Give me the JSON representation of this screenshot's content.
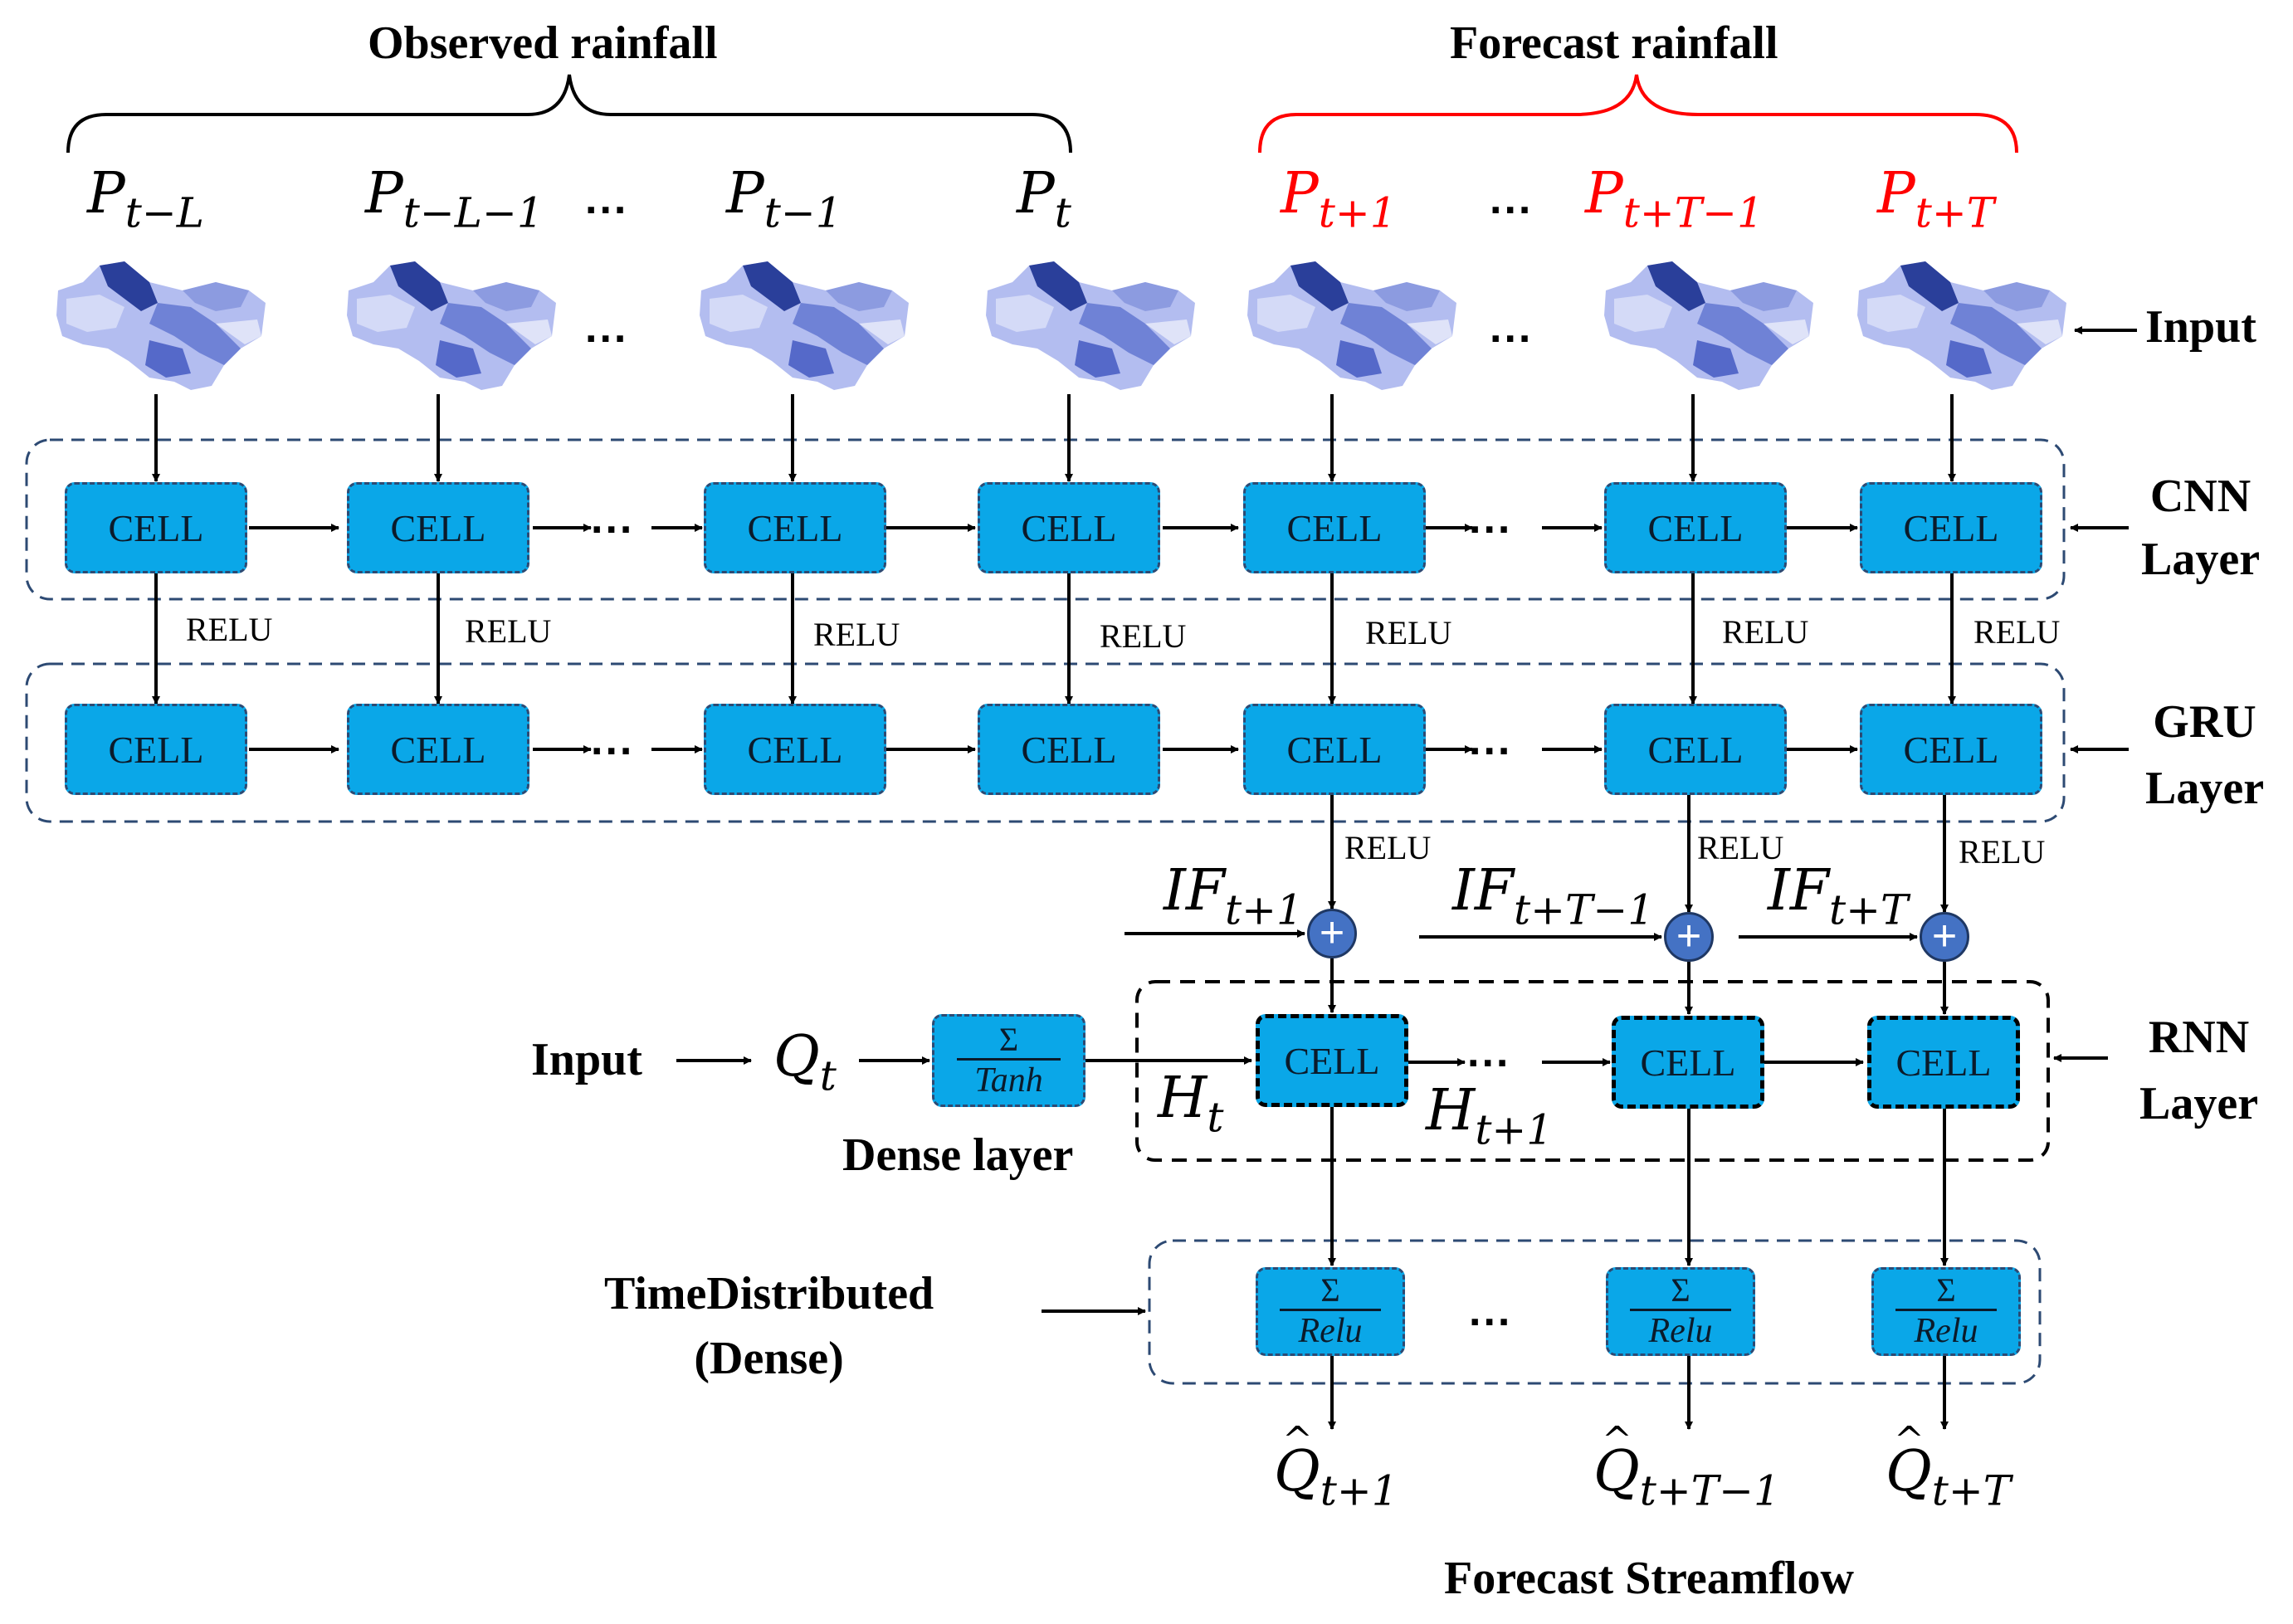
{
  "labels": {
    "observed": "Observed rainfall",
    "forecast": "Forecast rainfall",
    "input": "Input",
    "cnn_layer": [
      "CNN",
      "Layer"
    ],
    "gru_layer": [
      "GRU",
      "Layer"
    ],
    "rnn_layer": [
      "RNN",
      "Layer"
    ],
    "rnn_input": "Input",
    "dense_layer": "Dense layer",
    "time_distributed": [
      "TimeDistributed",
      "(Dense)"
    ],
    "forecast_streamflow": "Forecast Streamflow"
  },
  "cell_text": "CELL",
  "relu_text": "RELU",
  "ellipsis": "...",
  "rainfall_symbols": [
    {
      "base": "P",
      "sub": "t−L"
    },
    {
      "base": "P",
      "sub": "t−L−1"
    },
    {
      "base": "P",
      "sub": "t−1"
    },
    {
      "base": "P",
      "sub": "t"
    },
    {
      "base": "P",
      "sub": "t+1"
    },
    {
      "base": "P",
      "sub": "t+T−1"
    },
    {
      "base": "P",
      "sub": "t+T"
    }
  ],
  "if_symbols": [
    {
      "base": "IF",
      "sub": "t+1"
    },
    {
      "base": "IF",
      "sub": "t+T−1"
    },
    {
      "base": "IF",
      "sub": "t+T"
    }
  ],
  "q_input": {
    "base": "Q",
    "sub": "t"
  },
  "hidden_states": [
    {
      "base": "H",
      "sub": "t"
    },
    {
      "base": "H",
      "sub": "t+1"
    }
  ],
  "outputs": [
    {
      "base": "Q",
      "sub": "t+1"
    },
    {
      "base": "Q",
      "sub": "t+T−1"
    },
    {
      "base": "Q",
      "sub": "t+T"
    }
  ],
  "dense_fn": {
    "num": "Σ",
    "den": "Tanh"
  },
  "td_fn": {
    "num": "Σ",
    "den": "Relu"
  },
  "plus_symbol": "+",
  "colors": {
    "cell_fill": "#0aa7e8",
    "forecast_red": "#ff0000",
    "group_border": "#2d4a73",
    "plus_fill": "#4472c4"
  }
}
